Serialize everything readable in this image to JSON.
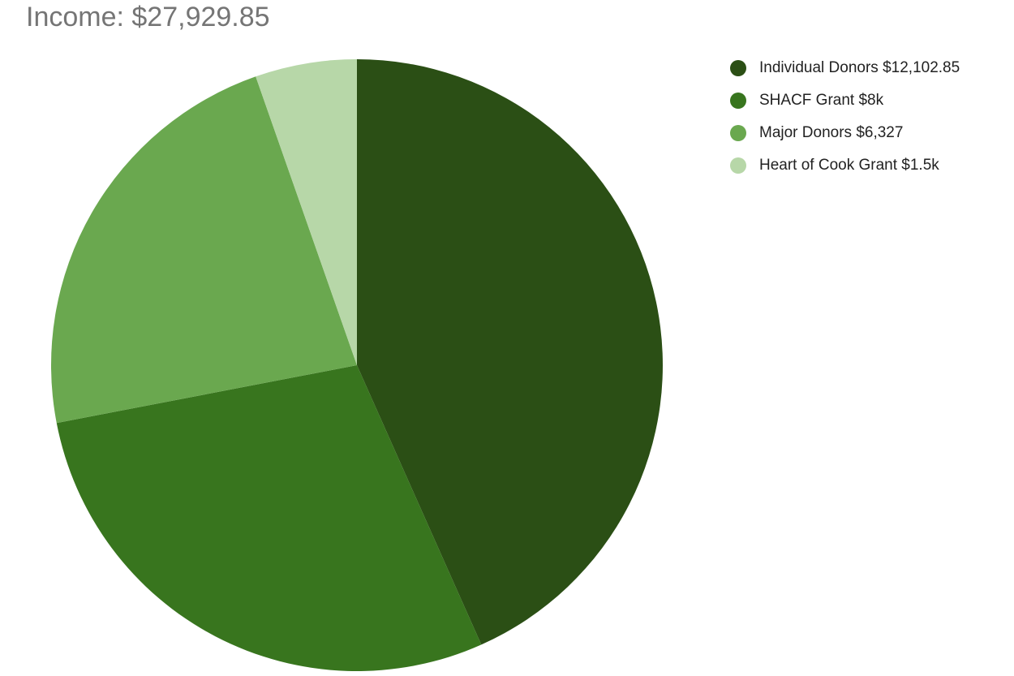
{
  "chart_data": {
    "type": "pie",
    "title": "Income: $27,929.85",
    "legend_position": "right",
    "start_angle": "top",
    "direction": "clockwise",
    "slices": [
      {
        "label": "Individual Donors $12,102.85",
        "value": 12102.85,
        "color": "#2b4f15"
      },
      {
        "label": "SHACF Grant $8k",
        "value": 8000,
        "color": "#38751e"
      },
      {
        "label": "Major Donors $6,327",
        "value": 6327,
        "color": "#6aa84f"
      },
      {
        "label": "Heart of Cook Grant $1.5k",
        "value": 1500,
        "color": "#b7d7a8"
      }
    ]
  }
}
